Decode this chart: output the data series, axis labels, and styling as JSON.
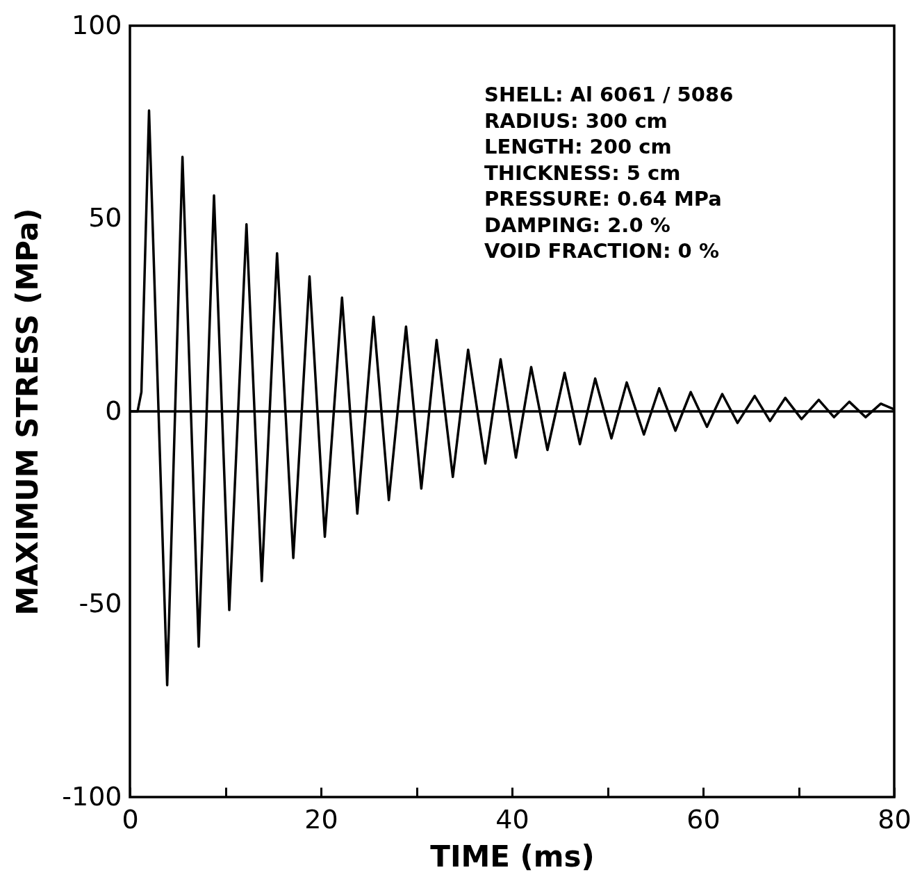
{
  "chart_data": {
    "type": "line",
    "xlabel": "TIME (ms)",
    "ylabel": "MAXIMUM  STRESS (MPa)",
    "xlim": [
      0,
      80
    ],
    "ylim": [
      -100,
      100
    ],
    "xticks": [
      0,
      {
        "value": 10,
        "label": null
      },
      20,
      {
        "value": 30,
        "label": null
      },
      40,
      {
        "value": 50,
        "label": null
      },
      60,
      {
        "value": 70,
        "label": null
      },
      80
    ],
    "yticks": [
      -100,
      -50,
      0,
      50,
      100
    ],
    "grid": false,
    "marker": "none",
    "line_style": "solid",
    "ref_lines": [
      {
        "axis": "y",
        "value": 0,
        "color": "#000000"
      }
    ],
    "annotations": [
      "SHELL:  Al 6061 / 5086",
      "RADIUS:      300 cm",
      "LENGTH:     200 cm",
      "THICKNESS:     5 cm",
      "PRESSURE: 0.64 MPa",
      "DAMPING:    2.0 %",
      "VOID FRACTION: 0 %"
    ],
    "series": [
      {
        "color": "#000000",
        "x": [
          0,
          0.8,
          1.2,
          2.0,
          3.9,
          5.5,
          7.2,
          8.8,
          10.4,
          12.2,
          13.8,
          15.4,
          17.1,
          18.8,
          20.4,
          22.2,
          23.8,
          25.5,
          27.1,
          28.9,
          30.5,
          32.1,
          33.8,
          35.4,
          37.2,
          38.8,
          40.4,
          42.0,
          43.7,
          45.5,
          47.1,
          48.7,
          50.4,
          52.0,
          53.8,
          55.4,
          57.1,
          58.7,
          60.4,
          62.0,
          63.6,
          65.4,
          67.0,
          68.6,
          70.3,
          72.1,
          73.7,
          75.3,
          77.0,
          78.6,
          80
        ],
        "values": [
          0,
          0,
          5,
          78,
          -71,
          66,
          -61,
          56,
          -51.5,
          48.5,
          -44,
          41,
          -38,
          35,
          -32.5,
          29.5,
          -26.5,
          24.5,
          -23,
          22,
          -20,
          18.5,
          -17,
          16,
          -13.5,
          13.5,
          -12,
          11.5,
          -10,
          10,
          -8.5,
          8.5,
          -7,
          7.5,
          -6,
          6,
          -5,
          5,
          -4,
          4.5,
          -3,
          4,
          -2.5,
          3.5,
          -2,
          3,
          -1.5,
          2.5,
          -1.5,
          2,
          0.5
        ]
      }
    ]
  }
}
